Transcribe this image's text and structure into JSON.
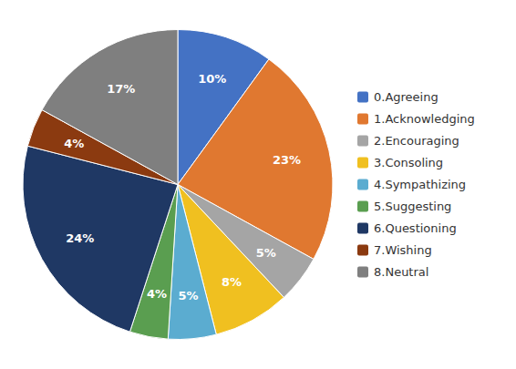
{
  "chart_data": {
    "type": "pie",
    "categories": [
      "0.Agreeing",
      "1.Acknowledging",
      "2.Encouraging",
      "3.Consoling",
      "4.Sympathizing",
      "5.Suggesting",
      "6.Questioning",
      "7.Wishing",
      "8.Neutral"
    ],
    "values": [
      10,
      23,
      5,
      8,
      5,
      4,
      24,
      4,
      17
    ],
    "value_labels": [
      "10%",
      "23%",
      "5%",
      "8%",
      "5%",
      "4%",
      "24%",
      "4%",
      "17%"
    ],
    "colors": [
      "#4472c4",
      "#e07830",
      "#a5a5a5",
      "#f0c020",
      "#5bacd0",
      "#5a9e50",
      "#1f3864",
      "#8b3a10",
      "#7f7f7f"
    ],
    "data_labels": true,
    "legend": "right"
  }
}
